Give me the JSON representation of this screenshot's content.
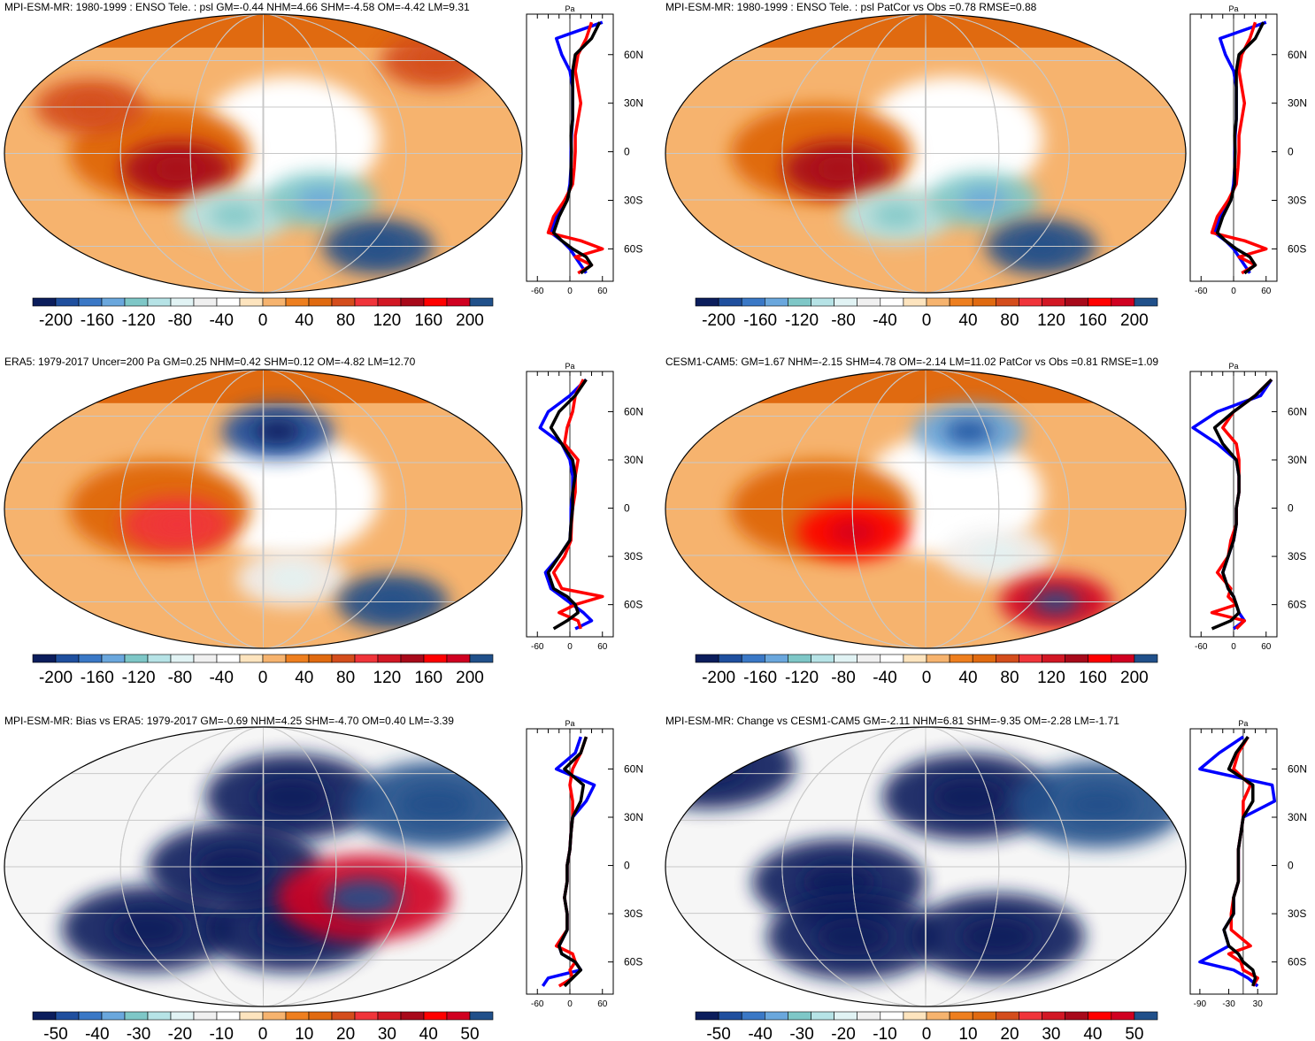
{
  "figure": {
    "description_colors": {
      "ocean_white": "#ffffff",
      "grid": "#c8c8c8",
      "coast": "#000000",
      "obs_line": "#000000",
      "model_line": "#ff0000",
      "alt_line": "#0000ff"
    },
    "colorbar_psl": {
      "colors": [
        "#0b1d5c",
        "#1f4f9e",
        "#3a78c6",
        "#6aa7dd",
        "#7ec7c7",
        "#b6e3e6",
        "#e1f3f4",
        "#f0f0f0",
        "#ffffff",
        "#fde4be",
        "#f6b36e",
        "#ee7f1f",
        "#e06a10",
        "#d44d1c",
        "#f0343a",
        "#d21724",
        "#a8091a",
        "#ff0000",
        "#d00020",
        "#20508a"
      ],
      "labels": [
        "-200",
        "-160",
        "-120",
        "-80",
        "-40",
        "0",
        "40",
        "80",
        "120",
        "160",
        "200"
      ]
    },
    "colorbar_bias": {
      "colors": [
        "#0b1d5c",
        "#1f4f9e",
        "#3a78c6",
        "#6aa7dd",
        "#7ec7c7",
        "#b6e3e6",
        "#e1f3f4",
        "#f0f0f0",
        "#ffffff",
        "#fde4be",
        "#f6b36e",
        "#ee7f1f",
        "#e06a10",
        "#d44d1c",
        "#f0343a",
        "#d21724",
        "#a8091a",
        "#ff0000",
        "#d00020",
        "#20508a"
      ],
      "labels": [
        "-50",
        "-40",
        "-30",
        "-20",
        "-10",
        "0",
        "10",
        "20",
        "30",
        "40",
        "50"
      ]
    }
  },
  "chart_data": [
    {
      "type": "heatmap",
      "panel": "top-left",
      "title": "MPI-ESM-MR: 1980-1999 : ENSO Tele. : psl GM=-0.44 NHM=4.66 SHM=-4.58 OM=-4.42 LM=9.31",
      "units": "Pa",
      "lat_labels": [
        "60N",
        "30N",
        "0",
        "30S",
        "60S"
      ],
      "profile_xticks": [
        "-60",
        "0",
        "60"
      ],
      "profile_xlim": [
        -80,
        80
      ],
      "colorbar": "colorbar_psl",
      "anomalies": [
        {
          "lon": 120,
          "lat": -10,
          "value": 120
        },
        {
          "lon": 160,
          "lat": -40,
          "value": -100
        },
        {
          "lon": 220,
          "lat": -30,
          "value": -120
        },
        {
          "lon": 260,
          "lat": -60,
          "value": 180
        },
        {
          "lon": 60,
          "lat": 30,
          "value": 60
        },
        {
          "lon": 300,
          "lat": 60,
          "value": 60
        }
      ],
      "zonal_profiles": {
        "lat": [
          80,
          70,
          60,
          50,
          40,
          30,
          20,
          10,
          0,
          -10,
          -20,
          -30,
          -40,
          -50,
          -55,
          -60,
          -65,
          -70,
          -75
        ],
        "series": [
          {
            "name": "obs",
            "color": "#000000",
            "values": [
              55,
              40,
              10,
              5,
              5,
              5,
              5,
              2,
              3,
              2,
              2,
              -5,
              -20,
              -30,
              -15,
              5,
              30,
              40,
              20
            ]
          },
          {
            "name": "model",
            "color": "#ff0000",
            "values": [
              40,
              30,
              15,
              10,
              15,
              20,
              15,
              10,
              10,
              8,
              5,
              -10,
              -30,
              -40,
              20,
              60,
              10,
              40,
              15
            ]
          },
          {
            "name": "alt",
            "color": "#0000ff",
            "values": [
              60,
              -25,
              -15,
              0,
              5,
              5,
              5,
              3,
              2,
              2,
              0,
              -5,
              -25,
              -35,
              -15,
              0,
              10,
              20,
              30
            ]
          }
        ]
      }
    },
    {
      "type": "heatmap",
      "panel": "top-right",
      "title": "MPI-ESM-MR: 1980-1999 : ENSO Tele. : psl PatCor vs Obs =0.78 RMSE=0.88",
      "units": "Pa",
      "lat_labels": [
        "60N",
        "30N",
        "0",
        "30S",
        "60S"
      ],
      "profile_xticks": [
        "-60",
        "0",
        "60"
      ],
      "profile_xlim": [
        -80,
        80
      ],
      "colorbar": "colorbar_psl",
      "anomalies": [
        {
          "lon": 120,
          "lat": -10,
          "value": 120
        },
        {
          "lon": 160,
          "lat": -40,
          "value": -100
        },
        {
          "lon": 220,
          "lat": -30,
          "value": -120
        },
        {
          "lon": 260,
          "lat": -60,
          "value": 180
        }
      ],
      "zonal_profiles": {
        "lat": [
          80,
          70,
          60,
          50,
          40,
          30,
          20,
          10,
          0,
          -10,
          -20,
          -30,
          -40,
          -50,
          -55,
          -60,
          -65,
          -70,
          -75
        ],
        "series": [
          {
            "name": "obs",
            "color": "#000000",
            "values": [
              55,
              40,
              10,
              5,
              5,
              5,
              5,
              2,
              3,
              2,
              2,
              -5,
              -20,
              -30,
              -15,
              5,
              30,
              40,
              20
            ]
          },
          {
            "name": "model",
            "color": "#ff0000",
            "values": [
              40,
              30,
              15,
              10,
              15,
              20,
              15,
              10,
              10,
              8,
              5,
              -10,
              -30,
              -40,
              20,
              60,
              10,
              40,
              15
            ]
          },
          {
            "name": "alt",
            "color": "#0000ff",
            "values": [
              60,
              -25,
              -15,
              0,
              5,
              5,
              5,
              3,
              2,
              2,
              0,
              -5,
              -25,
              -35,
              -15,
              0,
              10,
              20,
              30
            ]
          }
        ]
      }
    },
    {
      "type": "heatmap",
      "panel": "middle-left",
      "title": "ERA5: 1979-2017 Uncer=200 Pa GM=0.25 NHM=0.42 SHM=0.12 OM=-4.82 LM=12.70",
      "units": "Pa",
      "lat_labels": [
        "60N",
        "30N",
        "0",
        "30S",
        "60S"
      ],
      "profile_xticks": [
        "-60",
        "0",
        "60"
      ],
      "profile_xlim": [
        -80,
        80
      ],
      "colorbar": "colorbar_psl",
      "anomalies": [
        {
          "lon": 190,
          "lat": 50,
          "value": -180
        },
        {
          "lon": 120,
          "lat": -10,
          "value": 80
        },
        {
          "lon": 200,
          "lat": -45,
          "value": -60
        },
        {
          "lon": 270,
          "lat": -60,
          "value": 180
        }
      ],
      "zonal_profiles": {
        "lat": [
          80,
          70,
          60,
          50,
          40,
          30,
          20,
          10,
          0,
          -10,
          -20,
          -30,
          -40,
          -50,
          -55,
          -60,
          -65,
          -70,
          -75
        ],
        "series": [
          {
            "name": "obs",
            "color": "#000000",
            "values": [
              30,
              10,
              -20,
              -35,
              -15,
              5,
              10,
              5,
              5,
              2,
              0,
              -20,
              -40,
              -30,
              -5,
              10,
              15,
              -5,
              -30
            ]
          },
          {
            "name": "model",
            "color": "#ff0000",
            "values": [
              25,
              10,
              5,
              -5,
              -10,
              15,
              10,
              10,
              5,
              3,
              2,
              -10,
              -30,
              -15,
              60,
              10,
              -20,
              15,
              20
            ]
          },
          {
            "name": "alt",
            "color": "#0000ff",
            "values": [
              30,
              0,
              -40,
              -55,
              -15,
              0,
              5,
              5,
              2,
              2,
              0,
              -20,
              -45,
              -35,
              -15,
              5,
              25,
              40,
              10
            ]
          }
        ]
      }
    },
    {
      "type": "heatmap",
      "panel": "middle-right",
      "title": "CESM1-CAM5: GM=1.67 NHM=-2.15 SHM=4.78 OM=-2.14 LM=11.02 PatCor vs Obs =0.81 RMSE=1.09",
      "units": "Pa",
      "lat_labels": [
        "60N",
        "30N",
        "0",
        "30S",
        "60S"
      ],
      "profile_xticks": [
        "-60",
        "0",
        "60"
      ],
      "profile_xlim": [
        -80,
        80
      ],
      "colorbar": "colorbar_psl",
      "anomalies": [
        {
          "lon": 210,
          "lat": 50,
          "value": -140
        },
        {
          "lon": 130,
          "lat": -15,
          "value": 140
        },
        {
          "lon": 230,
          "lat": -30,
          "value": -60
        },
        {
          "lon": 270,
          "lat": -60,
          "value": 160
        }
      ],
      "zonal_profiles": {
        "lat": [
          80,
          70,
          60,
          50,
          40,
          30,
          20,
          10,
          0,
          -10,
          -20,
          -30,
          -40,
          -50,
          -55,
          -60,
          -65,
          -70,
          -75
        ],
        "series": [
          {
            "name": "obs",
            "color": "#000000",
            "values": [
              70,
              40,
              0,
              -35,
              -20,
              5,
              10,
              10,
              5,
              5,
              0,
              -10,
              -20,
              -10,
              0,
              5,
              10,
              -5,
              -40
            ]
          },
          {
            "name": "model",
            "color": "#ff0000",
            "values": [
              70,
              40,
              0,
              -20,
              5,
              10,
              10,
              10,
              5,
              5,
              -5,
              -10,
              -30,
              -5,
              -10,
              5,
              -40,
              20,
              5
            ]
          },
          {
            "name": "alt",
            "color": "#0000ff",
            "values": [
              70,
              50,
              -30,
              -75,
              -30,
              5,
              10,
              10,
              5,
              5,
              0,
              -10,
              -20,
              -10,
              0,
              5,
              10,
              20,
              0
            ]
          }
        ]
      }
    },
    {
      "type": "heatmap",
      "panel": "bottom-left",
      "title": "MPI-ESM-MR: Bias vs ERA5: 1979-2017 GM=-0.69 NHM=4.25 SHM=-4.70 OM=0.40 LM=-3.39",
      "units": "Pa",
      "lat_labels": [
        "60N",
        "30N",
        "0",
        "30S",
        "60S"
      ],
      "profile_xticks": [
        "-60",
        "0",
        "60"
      ],
      "profile_xlim": [
        -80,
        80
      ],
      "colorbar": "colorbar_bias",
      "anomalies": [
        {
          "lon": 200,
          "lat": 45,
          "value": -50
        },
        {
          "lon": 300,
          "lat": 40,
          "value": 50
        },
        {
          "lon": 100,
          "lat": -40,
          "value": -50
        },
        {
          "lon": 200,
          "lat": -40,
          "value": -50
        },
        {
          "lon": 160,
          "lat": 0,
          "value": -50
        },
        {
          "lon": 250,
          "lat": -20,
          "value": 40
        }
      ],
      "zonal_profiles": {
        "lat": [
          80,
          70,
          60,
          50,
          40,
          30,
          20,
          10,
          0,
          -10,
          -20,
          -30,
          -40,
          -50,
          -55,
          -60,
          -65,
          -70,
          -75
        ],
        "series": [
          {
            "name": "obs",
            "color": "#000000",
            "values": [
              30,
              20,
              -10,
              25,
              20,
              5,
              2,
              0,
              -5,
              -5,
              -10,
              -5,
              -5,
              -20,
              -15,
              10,
              20,
              5,
              -10
            ]
          },
          {
            "name": "model",
            "color": "#ff0000",
            "values": [
              30,
              20,
              5,
              0,
              5,
              5,
              2,
              0,
              -5,
              -5,
              -10,
              -5,
              -5,
              -25,
              5,
              10,
              0,
              5,
              -20
            ]
          },
          {
            "name": "alt",
            "color": "#0000ff",
            "values": [
              20,
              10,
              -25,
              45,
              30,
              5,
              2,
              0,
              -5,
              -5,
              -10,
              -5,
              -5,
              -20,
              -15,
              10,
              20,
              -40,
              -50
            ]
          }
        ]
      }
    },
    {
      "type": "heatmap",
      "panel": "bottom-right",
      "title": "MPI-ESM-MR: Change vs CESM1-CAM5 GM=-2.11 NHM=6.81 SHM=-9.35 OM=-2.28 LM=-1.71",
      "units": "Pa",
      "lat_labels": [
        "60N",
        "30N",
        "0",
        "30S",
        "60S"
      ],
      "profile_xticks": [
        "-90",
        "-30",
        "30"
      ],
      "profile_xlim": [
        -110,
        70
      ],
      "colorbar": "colorbar_bias",
      "anomalies": [
        {
          "lon": 30,
          "lat": 65,
          "value": -50
        },
        {
          "lon": 210,
          "lat": 45,
          "value": -50
        },
        {
          "lon": 120,
          "lat": -10,
          "value": -50
        },
        {
          "lon": 130,
          "lat": -45,
          "value": -50
        },
        {
          "lon": 230,
          "lat": -45,
          "value": -50
        },
        {
          "lon": 300,
          "lat": 40,
          "value": 50
        }
      ],
      "zonal_profiles": {
        "lat": [
          80,
          70,
          60,
          50,
          40,
          30,
          20,
          10,
          0,
          -10,
          -20,
          -30,
          -40,
          -50,
          -55,
          -60,
          -65,
          -70,
          -75
        ],
        "series": [
          {
            "name": "obs",
            "color": "#000000",
            "values": [
              10,
              -15,
              -30,
              20,
              20,
              0,
              -5,
              -10,
              -10,
              -10,
              -20,
              -20,
              -40,
              -30,
              -10,
              0,
              20,
              25,
              20
            ]
          },
          {
            "name": "model",
            "color": "#ff0000",
            "values": [
              10,
              -10,
              -20,
              15,
              0,
              0,
              -5,
              -10,
              -10,
              -10,
              -20,
              -25,
              -25,
              15,
              -30,
              -5,
              0,
              30,
              20
            ]
          },
          {
            "name": "alt",
            "color": "#0000ff",
            "values": [
              0,
              -50,
              -90,
              60,
              65,
              0,
              -5,
              -10,
              -10,
              -10,
              -20,
              -20,
              -40,
              -30,
              -60,
              -90,
              -20,
              10,
              30
            ]
          }
        ]
      }
    }
  ]
}
